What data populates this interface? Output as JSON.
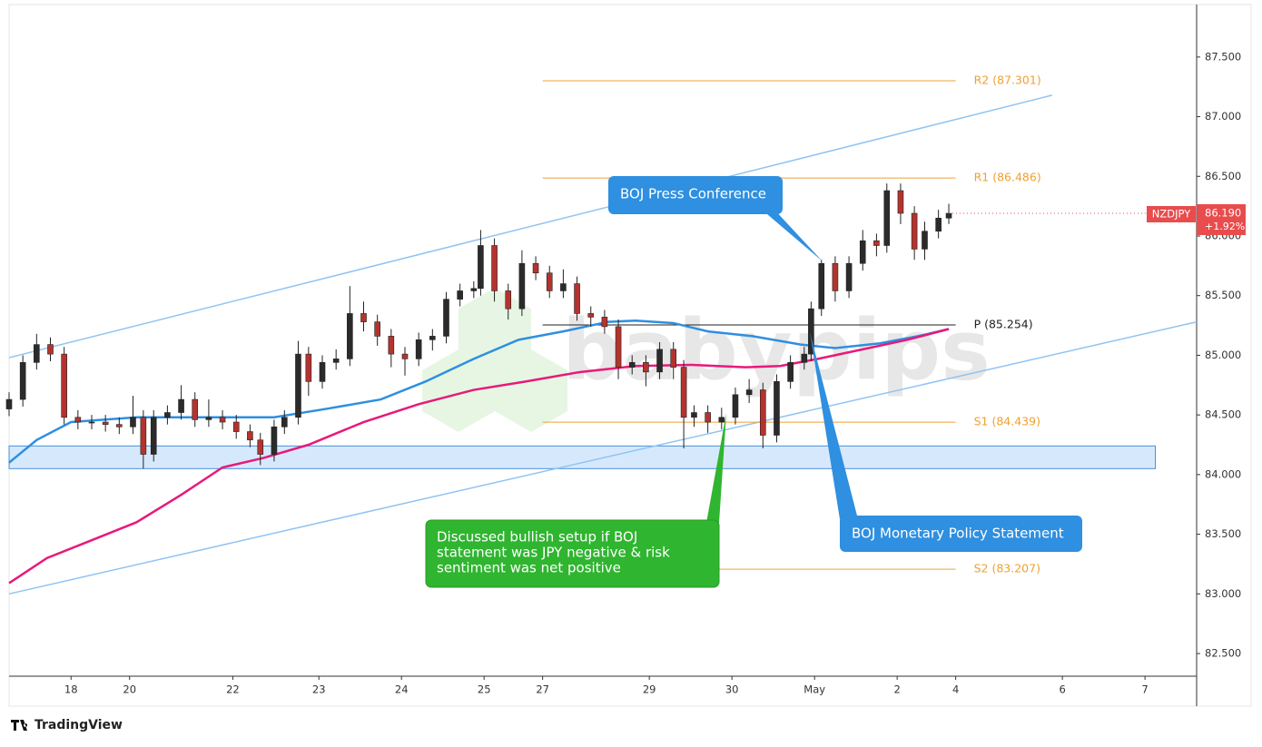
{
  "chart_data": {
    "type": "candlestick",
    "symbol": "NZDJPY",
    "last_price": {
      "value": 86.19,
      "label": "86.190"
    },
    "change": "+1.92%",
    "xlim": [
      0,
      345
    ],
    "ylim": [
      82.31,
      87.94
    ],
    "xticks": [
      {
        "value": 18,
        "label": "18"
      },
      {
        "value": 35,
        "label": "20"
      },
      {
        "value": 65,
        "label": "22"
      },
      {
        "value": 90,
        "label": "23"
      },
      {
        "value": 114,
        "label": "24"
      },
      {
        "value": 138,
        "label": "25"
      },
      {
        "value": 155,
        "label": "27"
      },
      {
        "value": 186,
        "label": "29"
      },
      {
        "value": 210,
        "label": "30"
      },
      {
        "value": 234,
        "label": "May"
      },
      {
        "value": 258,
        "label": "2"
      },
      {
        "value": 275,
        "label": "4"
      },
      {
        "value": 306,
        "label": "6"
      },
      {
        "value": 330,
        "label": "7"
      }
    ],
    "yticks": [
      {
        "value": 82.5,
        "label": "82.500"
      },
      {
        "value": 83,
        "label": "83.000"
      },
      {
        "value": 83.5,
        "label": "83.500"
      },
      {
        "value": 84,
        "label": "84.000"
      },
      {
        "value": 84.5,
        "label": "84.500"
      },
      {
        "value": 85,
        "label": "85.000"
      },
      {
        "value": 85.5,
        "label": "85.500"
      },
      {
        "value": 86,
        "label": "86.000"
      },
      {
        "value": 86.5,
        "label": "86.500"
      },
      {
        "value": 87,
        "label": "87.000"
      },
      {
        "value": 87.5,
        "label": "87.500"
      }
    ],
    "up_color": "#2b2b2b",
    "down_color": "#b5332e",
    "x": [
      0,
      4,
      8,
      12,
      16,
      20,
      24,
      28,
      32,
      36,
      39,
      42,
      46,
      50,
      54,
      58,
      62,
      66,
      70,
      73,
      77,
      80,
      84,
      87,
      91,
      95,
      99,
      103,
      107,
      111,
      115,
      119,
      123,
      127,
      131,
      135,
      137,
      141,
      145,
      149,
      153,
      157,
      161,
      165,
      169,
      173,
      177,
      181,
      185,
      189,
      193,
      196,
      199,
      203,
      207,
      211,
      215,
      219,
      223,
      227,
      231,
      233,
      236,
      240,
      244,
      248,
      252,
      255,
      259,
      263,
      266,
      270,
      273
    ],
    "open": [
      84.55,
      84.63,
      84.94,
      85.09,
      85.01,
      84.48,
      84.44,
      84.44,
      84.42,
      84.4,
      84.48,
      84.17,
      84.48,
      84.52,
      84.63,
      84.46,
      84.48,
      84.44,
      84.36,
      84.29,
      84.17,
      84.4,
      84.48,
      85.01,
      84.78,
      84.94,
      84.97,
      85.35,
      85.28,
      85.16,
      85.01,
      84.97,
      85.13,
      85.16,
      85.47,
      85.54,
      85.56,
      85.92,
      85.54,
      85.39,
      85.77,
      85.69,
      85.54,
      85.6,
      85.35,
      85.32,
      85.24,
      84.9,
      84.94,
      84.86,
      85.05,
      84.9,
      84.48,
      84.52,
      84.44,
      84.48,
      84.67,
      84.71,
      84.33,
      84.78,
      84.94,
      85.01,
      85.39,
      85.77,
      85.54,
      85.77,
      85.96,
      85.92,
      86.38,
      86.19,
      85.89,
      86.04,
      86.15
    ],
    "high": [
      84.69,
      85.0,
      85.18,
      85.15,
      85.07,
      84.54,
      84.5,
      84.5,
      84.48,
      84.66,
      84.54,
      84.54,
      84.58,
      84.75,
      84.69,
      84.63,
      84.54,
      84.5,
      84.42,
      84.35,
      84.46,
      84.54,
      85.12,
      85.07,
      85.0,
      85.05,
      85.58,
      85.45,
      85.34,
      85.22,
      85.07,
      85.19,
      85.22,
      85.53,
      85.6,
      85.62,
      86.05,
      85.98,
      85.6,
      85.88,
      85.83,
      85.75,
      85.72,
      85.66,
      85.41,
      85.38,
      85.3,
      85.0,
      85.0,
      85.11,
      85.11,
      84.96,
      84.58,
      84.58,
      84.56,
      84.73,
      84.8,
      84.77,
      84.84,
      85.0,
      85.07,
      85.45,
      85.8,
      85.83,
      85.83,
      86.05,
      86.02,
      86.44,
      86.44,
      86.25,
      86.12,
      86.22,
      86.27
    ],
    "low": [
      84.49,
      84.57,
      84.88,
      84.95,
      84.42,
      84.38,
      84.38,
      84.36,
      84.34,
      84.34,
      84.05,
      84.11,
      84.42,
      84.46,
      84.4,
      84.4,
      84.38,
      84.3,
      84.23,
      84.08,
      84.11,
      84.34,
      84.42,
      84.66,
      84.72,
      84.88,
      84.91,
      85.2,
      85.08,
      84.9,
      84.83,
      84.91,
      85.04,
      85.1,
      85.41,
      85.48,
      85.5,
      85.45,
      85.3,
      85.33,
      85.63,
      85.48,
      85.48,
      85.29,
      85.24,
      85.18,
      84.8,
      84.84,
      84.74,
      84.8,
      84.8,
      84.22,
      84.4,
      84.35,
      84.38,
      84.42,
      84.6,
      84.22,
      84.27,
      84.72,
      84.88,
      84.95,
      85.33,
      85.45,
      85.48,
      85.71,
      85.83,
      85.86,
      86.1,
      85.8,
      85.8,
      85.98,
      86.1
    ],
    "close": [
      84.63,
      84.94,
      85.09,
      85.01,
      84.48,
      84.44,
      84.44,
      84.42,
      84.4,
      84.48,
      84.17,
      84.48,
      84.52,
      84.63,
      84.46,
      84.48,
      84.44,
      84.36,
      84.29,
      84.17,
      84.4,
      84.48,
      85.01,
      84.78,
      84.94,
      84.97,
      85.35,
      85.28,
      85.16,
      85.01,
      84.97,
      85.13,
      85.16,
      85.47,
      85.54,
      85.56,
      85.92,
      85.54,
      85.39,
      85.77,
      85.69,
      85.54,
      85.6,
      85.35,
      85.32,
      85.24,
      84.9,
      84.94,
      84.86,
      85.05,
      84.9,
      84.48,
      84.52,
      84.44,
      84.48,
      84.67,
      84.71,
      84.33,
      84.78,
      84.94,
      85.01,
      85.39,
      85.77,
      85.54,
      85.77,
      85.96,
      85.92,
      86.38,
      86.19,
      85.89,
      86.04,
      86.15,
      86.19
    ],
    "moving_averages": [
      {
        "color": "#2f8fe0",
        "x": [
          0,
          8,
          18,
          37,
          77,
          92,
          108,
          121,
          135,
          148,
          161,
          174,
          182,
          193,
          203,
          216,
          230,
          240,
          253,
          264,
          273
        ],
        "values": [
          84.1,
          84.29,
          84.44,
          84.48,
          84.48,
          84.55,
          84.63,
          84.78,
          84.97,
          85.13,
          85.2,
          85.28,
          85.29,
          85.27,
          85.2,
          85.16,
          85.09,
          85.06,
          85.1,
          85.16,
          85.22
        ]
      },
      {
        "color": "#e8197a",
        "x": [
          0,
          11,
          24,
          37,
          50,
          62,
          74,
          87,
          103,
          119,
          135,
          150,
          166,
          182,
          198,
          214,
          224,
          235,
          248,
          261,
          273
        ],
        "values": [
          83.09,
          83.3,
          83.45,
          83.6,
          83.83,
          84.06,
          84.14,
          84.25,
          84.44,
          84.59,
          84.71,
          84.78,
          84.86,
          84.91,
          84.92,
          84.9,
          84.91,
          84.97,
          85.05,
          85.13,
          85.22
        ]
      }
    ],
    "trendlines": [
      {
        "color": "#90c4f2",
        "x": [
          0,
          303
        ],
        "values": [
          84.98,
          87.18
        ]
      },
      {
        "color": "#90c4f2",
        "x": [
          0,
          345
        ],
        "values": [
          83.0,
          85.28
        ]
      }
    ],
    "zone": {
      "color": "#cfe5fb",
      "x": [
        0,
        333
      ],
      "values": [
        84.05,
        84.24
      ]
    },
    "level_range": [
      155,
      275
    ],
    "levels": [
      {
        "label": "R2 (87.301)",
        "value": 87.301,
        "color": "#f0a030"
      },
      {
        "label": "R1 (86.486)",
        "value": 86.486,
        "color": "#f0a030"
      },
      {
        "label": "P (85.254)",
        "value": 85.254,
        "color": "#222222"
      },
      {
        "label": "S1 (84.439)",
        "value": 84.439,
        "color": "#f0a030"
      },
      {
        "label": "S2 (83.207)",
        "value": 83.207,
        "color": "#f0a030"
      }
    ],
    "annotations": [
      {
        "text": "BOJ Press Conference"
      },
      {
        "text": "BOJ Monetary Policy Statement"
      },
      {
        "lines": [
          "Discussed bullish setup if BOJ",
          "statement was JPY negative & risk",
          "sentiment was net positive"
        ]
      }
    ],
    "watermark": "babypips",
    "brand": "TradingView"
  }
}
